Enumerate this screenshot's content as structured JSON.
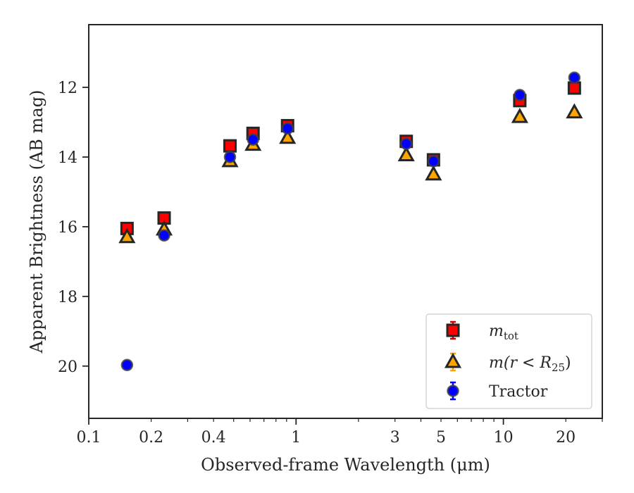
{
  "chart_data": {
    "type": "scatter",
    "xlabel": "Observed-frame Wavelength (μm)",
    "ylabel": "Apparent Brightness (AB mag)",
    "x_scale": "log",
    "xlim": [
      0.1,
      30
    ],
    "ylim": [
      21.5,
      10.2
    ],
    "y_inverted": true,
    "grid": false,
    "legend_position": "lower-right",
    "x_ticks": [
      {
        "value": 0.1,
        "label": "0.1"
      },
      {
        "value": 0.2,
        "label": "0.2"
      },
      {
        "value": 0.4,
        "label": "0.4"
      },
      {
        "value": 1,
        "label": "1"
      },
      {
        "value": 3,
        "label": "3"
      },
      {
        "value": 5,
        "label": "5"
      },
      {
        "value": 10,
        "label": "10"
      },
      {
        "value": 20,
        "label": "20"
      }
    ],
    "y_ticks": [
      {
        "value": 12,
        "label": "12"
      },
      {
        "value": 14,
        "label": "14"
      },
      {
        "value": 16,
        "label": "16"
      },
      {
        "value": 18,
        "label": "18"
      },
      {
        "value": 20,
        "label": "20"
      }
    ],
    "series": [
      {
        "name": "m_tot",
        "label_main": "m",
        "label_sub": "tot",
        "marker": "square",
        "color": "#ff0000",
        "edge_color": "#262626",
        "errorbar_color": "#cc0000",
        "points": [
          {
            "x": 0.153,
            "y": 16.05
          },
          {
            "x": 0.231,
            "y": 15.75
          },
          {
            "x": 0.48,
            "y": 13.68
          },
          {
            "x": 0.62,
            "y": 13.32
          },
          {
            "x": 0.91,
            "y": 13.1
          },
          {
            "x": 3.4,
            "y": 13.55
          },
          {
            "x": 4.6,
            "y": 14.08
          },
          {
            "x": 12.0,
            "y": 12.38
          },
          {
            "x": 22.0,
            "y": 12.02
          }
        ]
      },
      {
        "name": "m(r < R25)",
        "label_main": "m(r < R",
        "label_sub": "25",
        "label_end": ")",
        "marker": "triangle",
        "color": "#ffa500",
        "edge_color": "#262626",
        "errorbar_color": "#ffa500",
        "points": [
          {
            "x": 0.153,
            "y": 16.3
          },
          {
            "x": 0.231,
            "y": 16.08
          },
          {
            "x": 0.48,
            "y": 14.12
          },
          {
            "x": 0.62,
            "y": 13.65
          },
          {
            "x": 0.91,
            "y": 13.45
          },
          {
            "x": 3.4,
            "y": 13.95
          },
          {
            "x": 4.6,
            "y": 14.5
          },
          {
            "x": 12.0,
            "y": 12.85
          },
          {
            "x": 22.0,
            "y": 12.72
          }
        ]
      },
      {
        "name": "Tractor",
        "marker": "circle",
        "color": "#0000ff",
        "edge_color": "#404040",
        "errorbar_color": "#0000ff",
        "points": [
          {
            "x": 0.153,
            "y": 19.97
          },
          {
            "x": 0.231,
            "y": 16.25
          },
          {
            "x": 0.48,
            "y": 14.0
          },
          {
            "x": 0.62,
            "y": 13.5
          },
          {
            "x": 0.91,
            "y": 13.18
          },
          {
            "x": 3.4,
            "y": 13.62
          },
          {
            "x": 4.6,
            "y": 14.12
          },
          {
            "x": 12.0,
            "y": 12.22
          },
          {
            "x": 22.0,
            "y": 11.72
          }
        ]
      }
    ]
  }
}
